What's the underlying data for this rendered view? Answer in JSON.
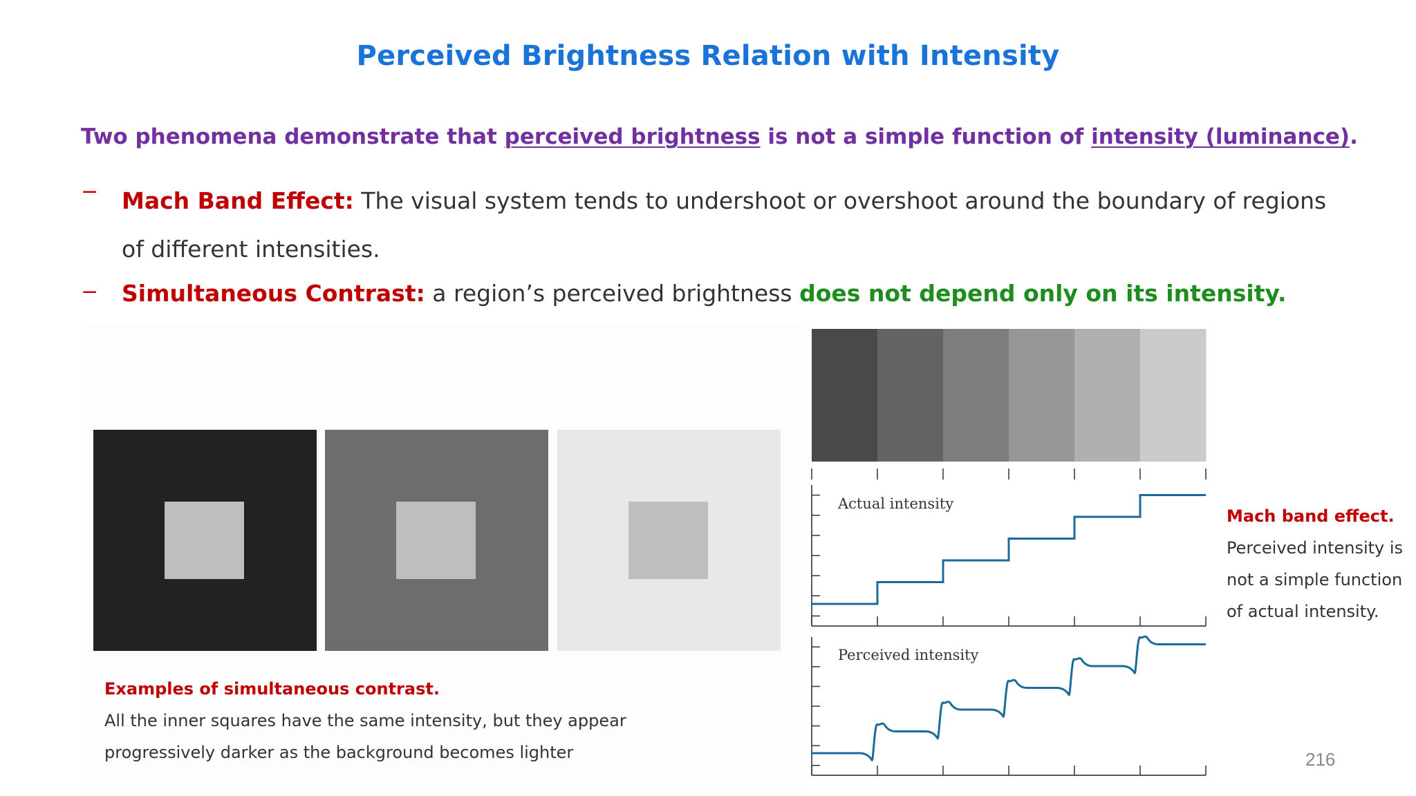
{
  "title": "Perceived Brightness Relation with Intensity",
  "intro": {
    "part1": "Two phenomena demonstrate that ",
    "link1": "perceived brightness",
    "part2": " is not a simple function of ",
    "link2": "intensity  (luminance)",
    "part3": "."
  },
  "bullets": [
    {
      "dash": "−",
      "term": "Mach Band Effect:",
      "text": " The visual system tends to undershoot or overshoot around the boundary of regions of different intensities."
    },
    {
      "dash": "−",
      "term": "Simultaneous Contrast:",
      "text": "  a region’s perceived brightness ",
      "emphasis": "does not depend only on its intensity."
    }
  ],
  "simultaneous_contrast": {
    "squares": [
      {
        "outer": "#232223",
        "inner": "#bebebf"
      },
      {
        "outer": "#6d6d6d",
        "inner": "#bebebf"
      },
      {
        "outer": "#e8e8ea",
        "inner": "#bebebf"
      }
    ],
    "caption_heading": "Examples of simultaneous contrast.",
    "caption_line1": "All the inner squares have the same intensity, but they appear",
    "caption_line2": "progressively darker as the background becomes lighter"
  },
  "mach_band": {
    "band_colors": [
      "#49484a",
      "#636264",
      "#7d7d7d",
      "#979797",
      "#b0b0b1",
      "#cbcbcc"
    ],
    "actual_label": "Actual intensity",
    "perceived_label": "Perceived intensity",
    "actual_levels": [
      1,
      2,
      3,
      4,
      5,
      6
    ],
    "caption_heading": "Mach band effect.",
    "caption_lines": [
      "Perceived intensity is",
      "not a simple function",
      "of actual intensity."
    ]
  },
  "colors": {
    "title": "#1a73d9",
    "intro": "#7030a0",
    "term": "#c00000",
    "emphasis": "#1e8c1e",
    "curve": "#1a6b9a"
  },
  "page_number": "216"
}
